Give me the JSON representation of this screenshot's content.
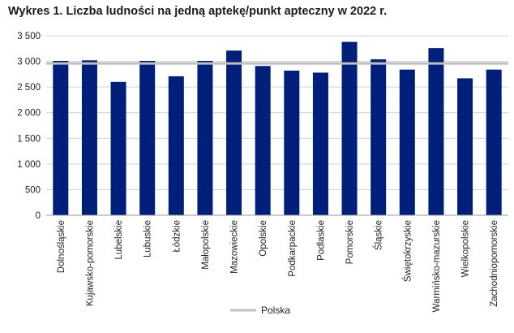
{
  "chart_data": {
    "type": "bar",
    "title": "Wykres 1. Liczba ludności na jedną aptekę/punkt apteczny w 2022 r.",
    "categories": [
      "Dolnośląskie",
      "Kujawsko-pomorskie",
      "Lubelskie",
      "Lubuskie",
      "Łódzkie",
      "Małopolskie",
      "Mazowieckie",
      "Opolskie",
      "Podkarpackie",
      "Podlaskie",
      "Pomorskie",
      "Śląskie",
      "Świętokrzyskie",
      "Warmińsko-mazurskie",
      "Wielkopolskie",
      "Zachodniopomorskie"
    ],
    "values": [
      3010,
      3020,
      2600,
      3010,
      2710,
      3010,
      3210,
      2910,
      2820,
      2780,
      3380,
      3040,
      2840,
      3260,
      2670,
      2840
    ],
    "reference_line": {
      "name": "Polska",
      "value": 2960,
      "color": "#c0c0c0"
    },
    "ylim": [
      0,
      3500
    ],
    "yticks": [
      0,
      500,
      1000,
      1500,
      2000,
      2500,
      3000,
      3500
    ],
    "ytick_labels": [
      "0",
      "500",
      "1 000",
      "1 500",
      "2 000",
      "2 500",
      "3 000",
      "3 500"
    ],
    "xlabel": "",
    "ylabel": "",
    "grid": true,
    "legend_position": "bottom-center",
    "bar_color": "#001f7a"
  }
}
